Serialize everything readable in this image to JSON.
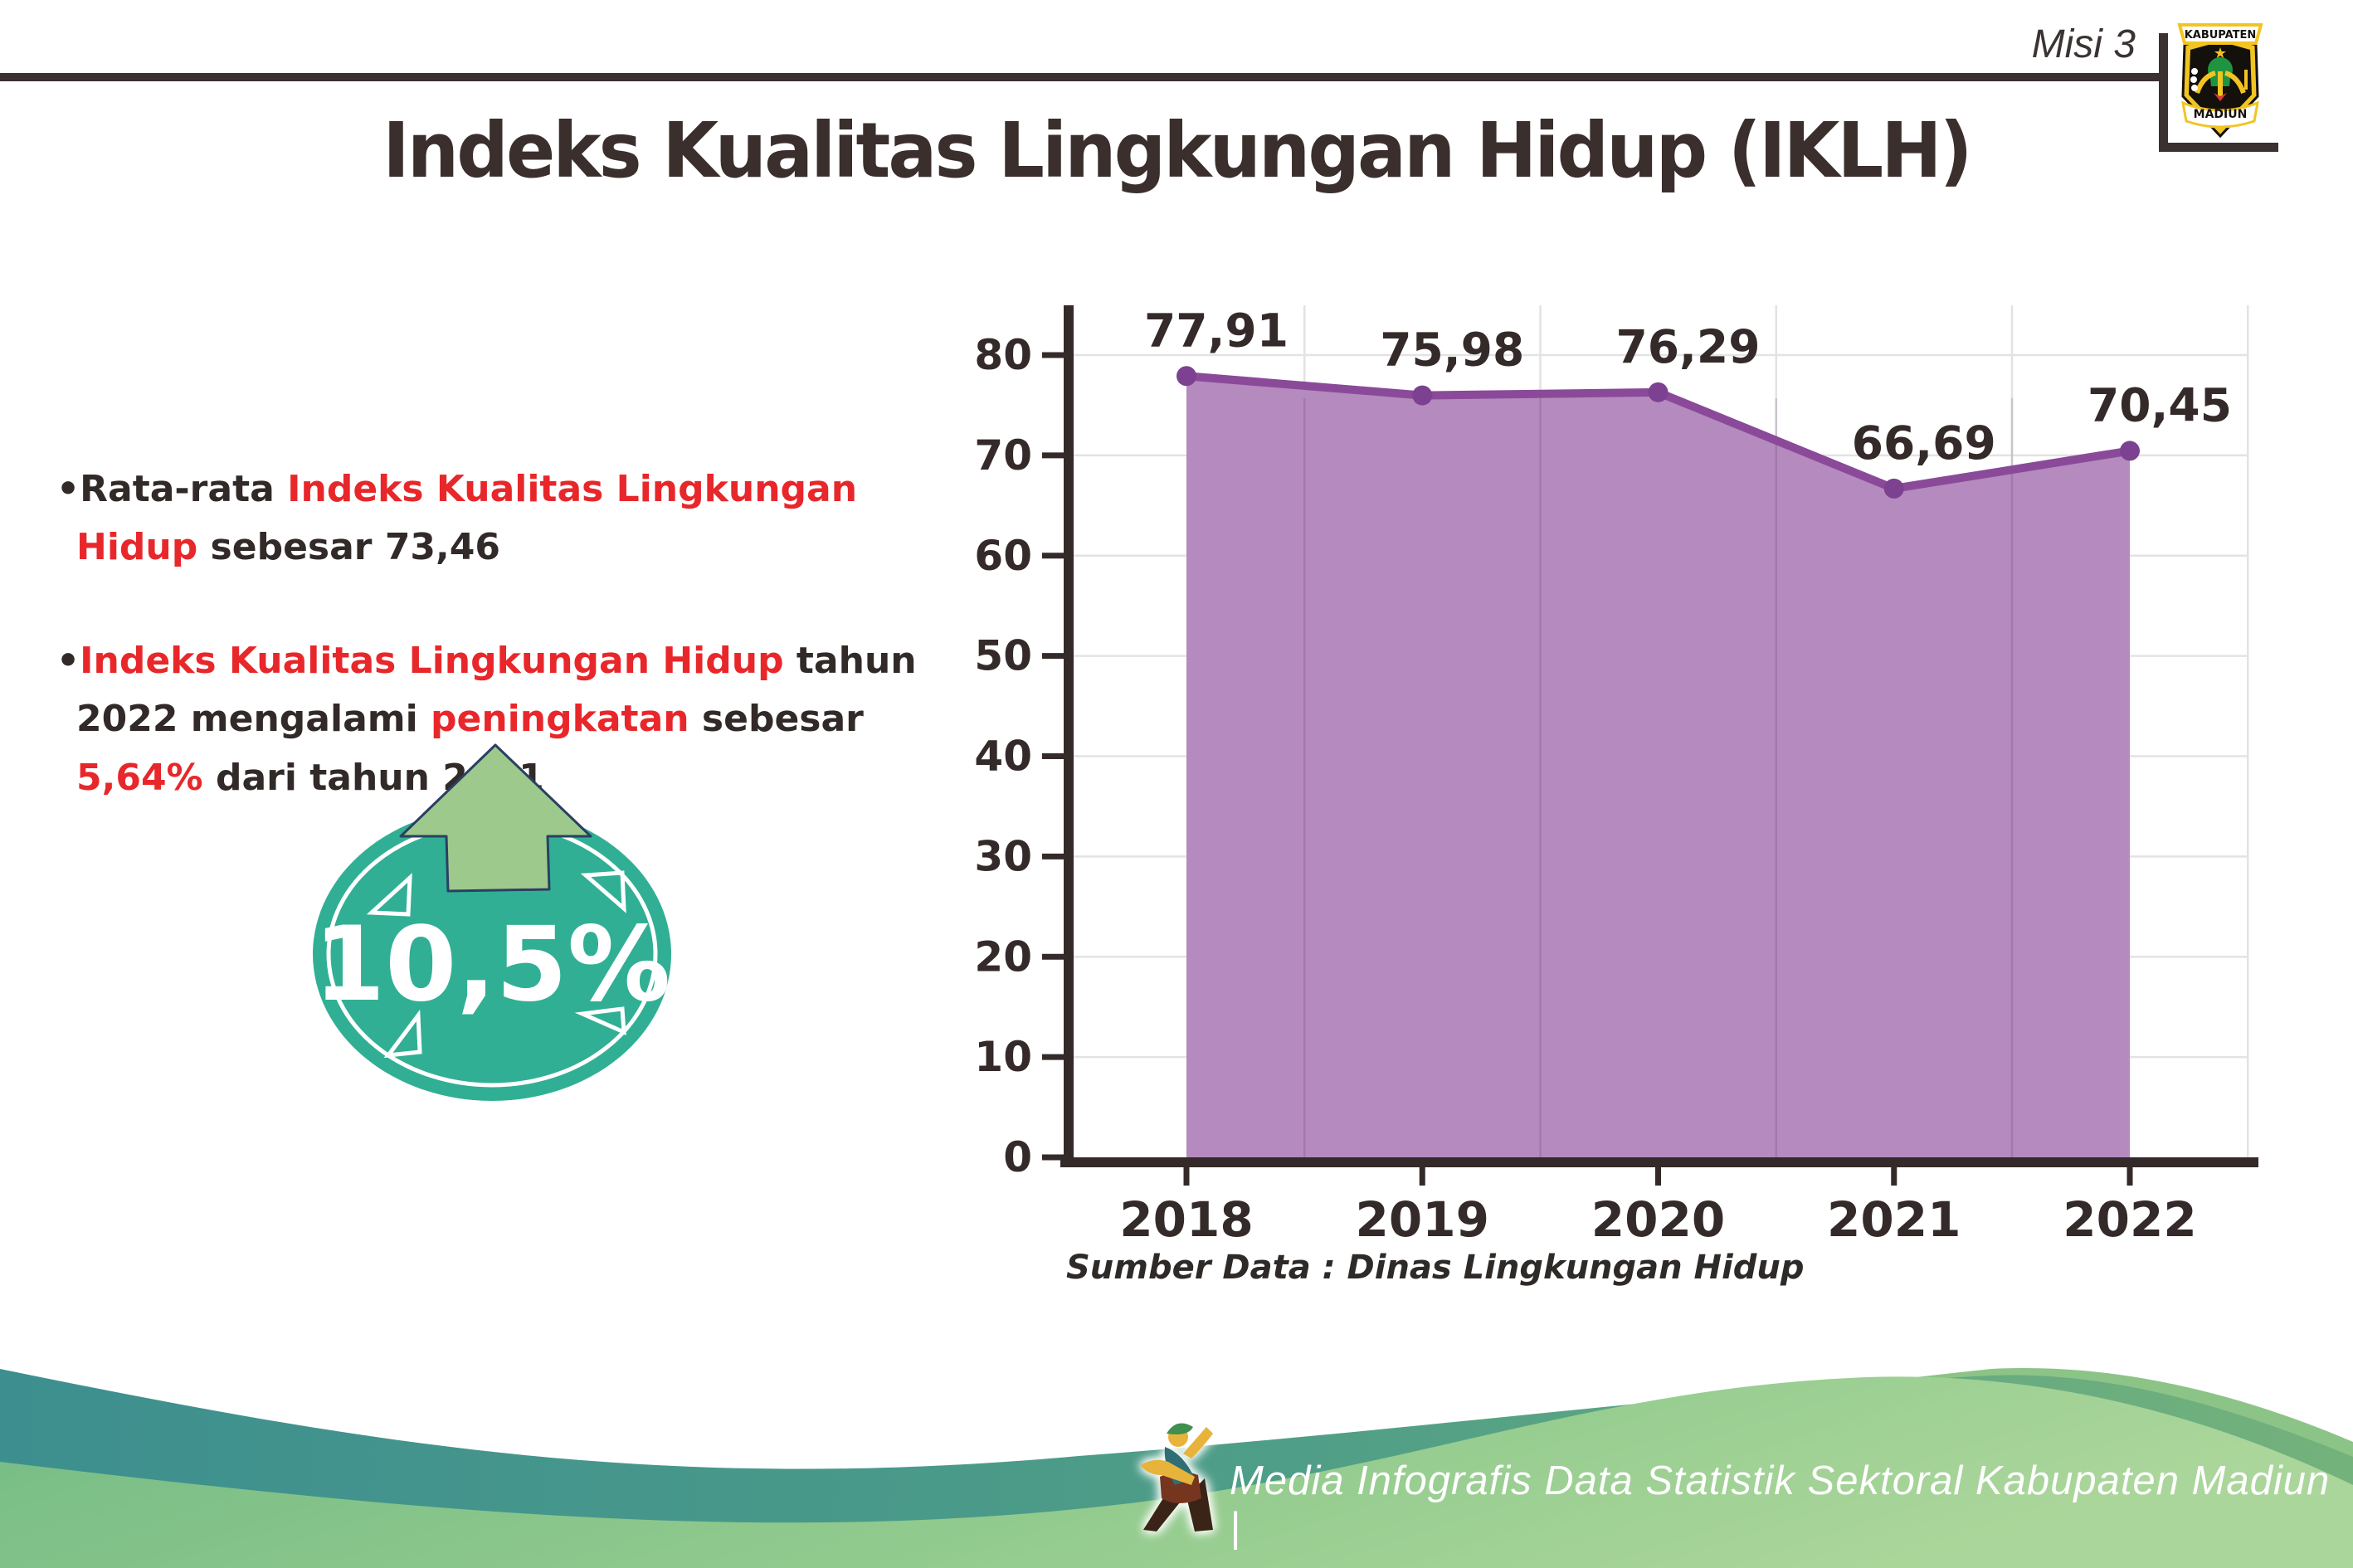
{
  "header": {
    "misi": "Misi 3",
    "title": "Indeks Kualitas Lingkungan Hidup (IKLH)",
    "logo": {
      "top_banner": "KABUPATEN",
      "bottom_banner": "MADIUN"
    }
  },
  "bullets": {
    "marker": "•",
    "b1": {
      "s1": {
        "t": "Rata-rata ",
        "c": "dark"
      },
      "s2": {
        "t": "Indeks Kualitas Lingkungan Hidup",
        "c": "red"
      },
      "s3": {
        "t": " sebesar 73,46",
        "c": "dark"
      }
    },
    "b2": {
      "s1": {
        "t": "Indeks Kualitas Lingkungan Hidup",
        "c": "red"
      },
      "s2": {
        "t": " tahun 2022 mengalami ",
        "c": "dark"
      },
      "s3": {
        "t": "peningkatan",
        "c": "red"
      },
      "s4": {
        "t": " sebesar ",
        "c": "dark"
      },
      "s5": {
        "t": "5,64%",
        "c": "red"
      },
      "s6": {
        "t": " dari tahun 2021",
        "c": "dark"
      }
    }
  },
  "badge": {
    "value": "10,5%"
  },
  "chart_data": {
    "type": "area",
    "categories": [
      "2018",
      "2019",
      "2020",
      "2021",
      "2022"
    ],
    "series": [
      {
        "name": "IKLH",
        "values": [
          77.91,
          75.98,
          76.29,
          66.69,
          70.45
        ]
      }
    ],
    "value_labels": [
      "77,91",
      "75,98",
      "76,29",
      "66,69",
      "70,45"
    ],
    "title": "",
    "xlabel": "",
    "ylabel": "",
    "ylim": [
      0,
      85
    ],
    "ytick_step": 10,
    "grid": true,
    "legend": "none",
    "source": "Sumber Data : Dinas Lingkungan Hidup"
  },
  "footer": {
    "credit": "Media Infografis Data Statistik Sektoral Kabupaten Madiun |"
  },
  "colors": {
    "accent_red": "#e8272b",
    "dark_text": "#322a28",
    "area_fill": "#b58abe",
    "line": "#8a4a99",
    "marker": "#7c4190",
    "badge_teal": "#31af94",
    "arrow_green": "#9dca8c",
    "arrow_outline_navy": "#2b3f63",
    "wave_teal": "#3d8f8f",
    "wave_green_light": "#a9d799",
    "logo_gold": "#f2c422",
    "logo_green": "#1f9440"
  }
}
